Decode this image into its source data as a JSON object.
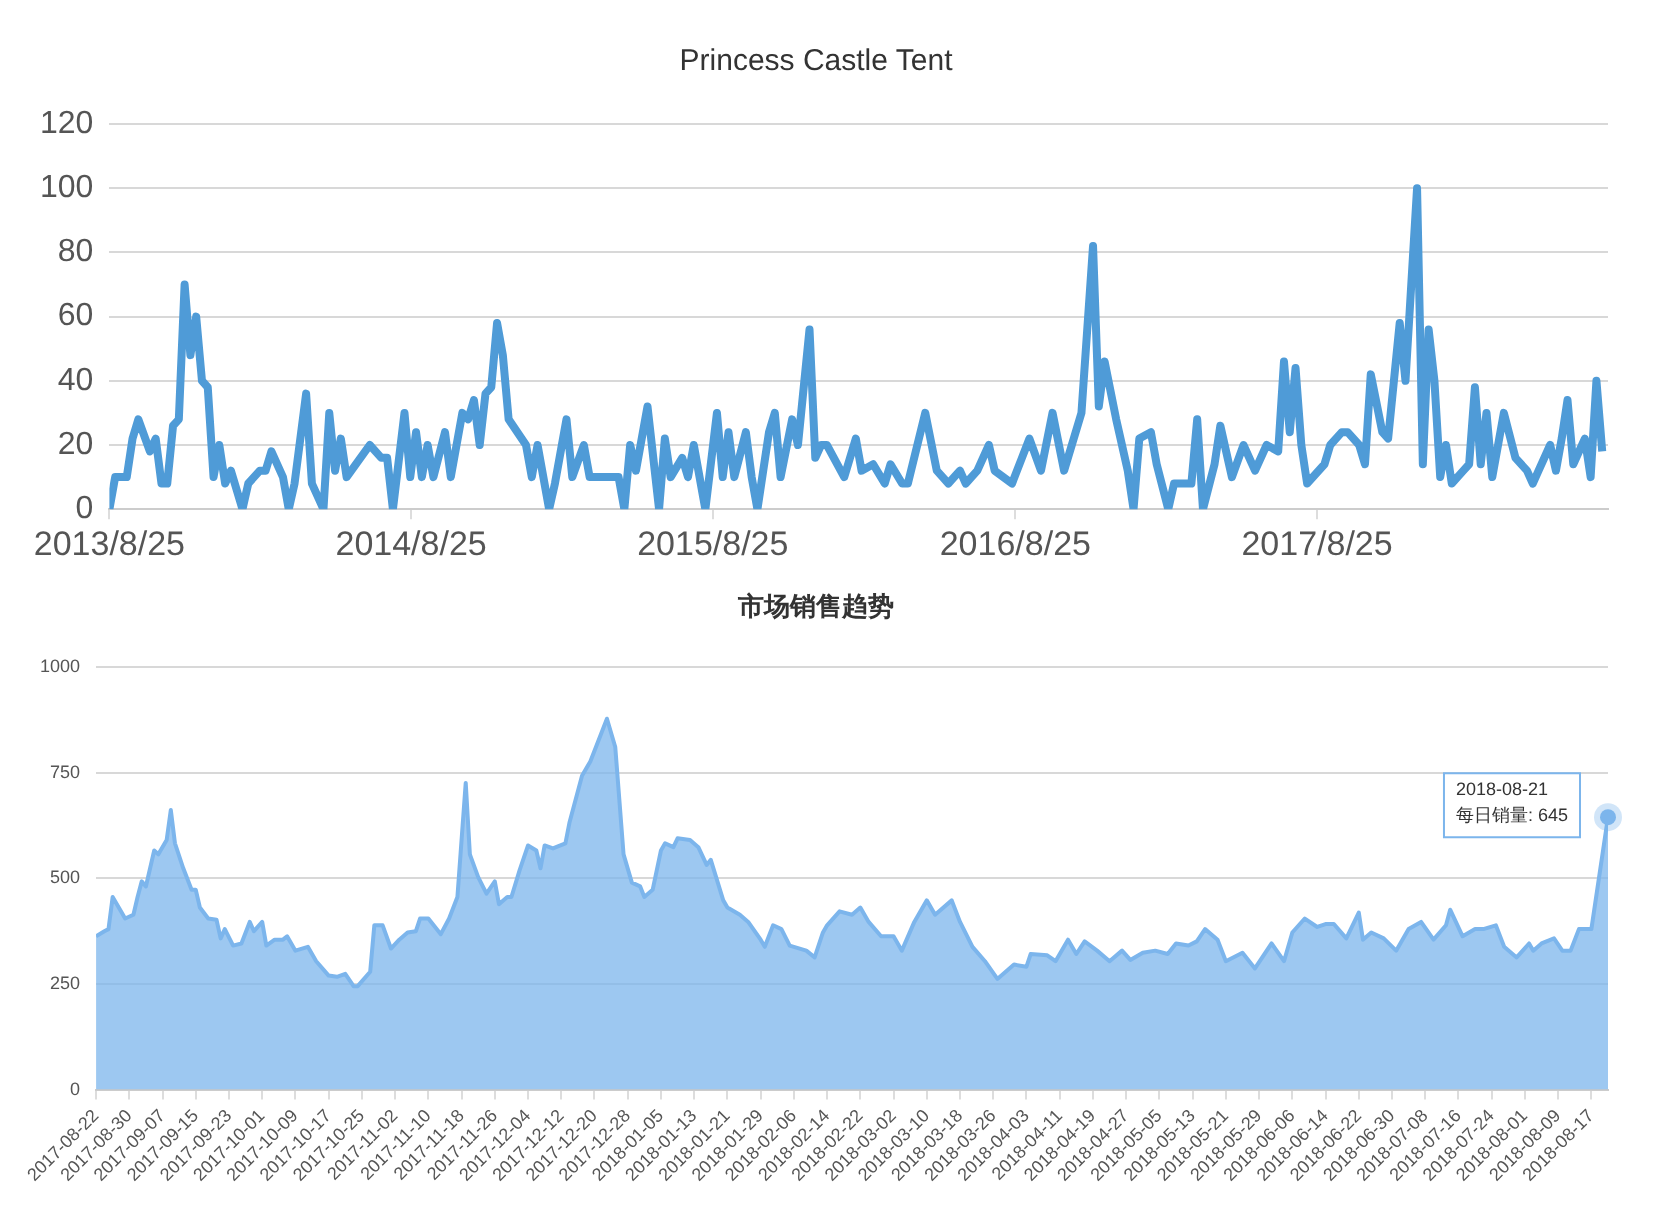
{
  "chart_data": [
    {
      "type": "line",
      "title": "Princess Castle Tent",
      "color": "#4f9bd7",
      "grid": "y",
      "legend": false,
      "xlim": [
        "2013-08-25",
        "2018-08-12"
      ],
      "ylim": [
        0,
        120
      ],
      "yticks": [
        0,
        20,
        40,
        60,
        80,
        100,
        120
      ],
      "xticks": [
        {
          "value": "2013-08-25",
          "label": "2013/8/25"
        },
        {
          "value": "2014-08-25",
          "label": "2014/8/25"
        },
        {
          "value": "2015-08-25",
          "label": "2015/8/25"
        },
        {
          "value": "2016-08-25",
          "label": "2016/8/25"
        },
        {
          "value": "2017-08-25",
          "label": "2017/8/25"
        }
      ],
      "x": [
        "2013-08-25",
        "2013-09-01",
        "2013-09-15",
        "2013-09-22",
        "2013-09-29",
        "2013-10-13",
        "2013-10-20",
        "2013-10-27",
        "2013-11-03",
        "2013-11-10",
        "2013-11-17",
        "2013-11-24",
        "2013-12-01",
        "2013-12-08",
        "2013-12-15",
        "2013-12-22",
        "2013-12-29",
        "2014-01-05",
        "2014-01-12",
        "2014-01-19",
        "2014-02-02",
        "2014-02-09",
        "2014-02-23",
        "2014-03-02",
        "2014-03-09",
        "2014-03-23",
        "2014-03-30",
        "2014-04-06",
        "2014-04-20",
        "2014-04-27",
        "2014-05-11",
        "2014-05-18",
        "2014-05-25",
        "2014-06-01",
        "2014-06-08",
        "2014-07-06",
        "2014-07-20",
        "2014-07-27",
        "2014-08-03",
        "2014-08-17",
        "2014-08-24",
        "2014-08-31",
        "2014-09-07",
        "2014-09-14",
        "2014-09-21",
        "2014-10-05",
        "2014-10-12",
        "2014-10-26",
        "2014-11-02",
        "2014-11-09",
        "2014-11-16",
        "2014-11-23",
        "2014-11-30",
        "2014-12-07",
        "2014-12-14",
        "2014-12-21",
        "2015-01-11",
        "2015-01-18",
        "2015-01-25",
        "2015-02-08",
        "2015-02-15",
        "2015-03-01",
        "2015-03-08",
        "2015-03-22",
        "2015-03-29",
        "2015-05-03",
        "2015-05-10",
        "2015-05-17",
        "2015-05-24",
        "2015-06-07",
        "2015-06-21",
        "2015-06-28",
        "2015-07-05",
        "2015-07-19",
        "2015-07-26",
        "2015-08-02",
        "2015-08-16",
        "2015-08-30",
        "2015-09-06",
        "2015-09-13",
        "2015-09-20",
        "2015-10-04",
        "2015-10-11",
        "2015-10-18",
        "2015-11-01",
        "2015-11-08",
        "2015-11-15",
        "2015-11-29",
        "2015-12-06",
        "2015-12-20",
        "2015-12-27",
        "2016-01-03",
        "2016-01-10",
        "2016-01-31",
        "2016-02-14",
        "2016-02-21",
        "2016-03-06",
        "2016-03-20",
        "2016-03-27",
        "2016-04-10",
        "2016-04-17",
        "2016-05-08",
        "2016-05-22",
        "2016-06-05",
        "2016-06-19",
        "2016-06-26",
        "2016-07-10",
        "2016-07-24",
        "2016-07-31",
        "2016-08-21",
        "2016-09-11",
        "2016-09-25",
        "2016-10-09",
        "2016-10-23",
        "2016-11-13",
        "2016-11-27",
        "2016-12-04",
        "2016-12-11",
        "2016-12-25",
        "2017-01-08",
        "2017-01-15",
        "2017-01-22",
        "2017-02-05",
        "2017-02-12",
        "2017-02-26",
        "2017-03-05",
        "2017-03-26",
        "2017-04-02",
        "2017-04-09",
        "2017-04-23",
        "2017-04-30",
        "2017-05-14",
        "2017-05-28",
        "2017-06-11",
        "2017-06-25",
        "2017-07-09",
        "2017-07-16",
        "2017-07-23",
        "2017-07-30",
        "2017-08-06",
        "2017-08-13",
        "2017-09-03",
        "2017-09-10",
        "2017-09-24",
        "2017-10-01",
        "2017-10-15",
        "2017-10-22",
        "2017-10-29",
        "2017-11-12",
        "2017-11-19",
        "2017-12-03",
        "2017-12-10",
        "2017-12-24",
        "2017-12-31",
        "2018-01-07",
        "2018-01-14",
        "2018-01-21",
        "2018-01-28",
        "2018-02-04",
        "2018-02-18",
        "2018-02-25",
        "2018-03-04",
        "2018-03-11",
        "2018-03-18",
        "2018-03-25",
        "2018-04-08",
        "2018-04-22",
        "2018-05-06",
        "2018-05-13",
        "2018-05-20",
        "2018-06-03",
        "2018-06-10",
        "2018-06-17",
        "2018-06-24",
        "2018-07-01",
        "2018-07-15",
        "2018-07-22",
        "2018-07-29",
        "2018-08-05"
      ],
      "values": [
        0,
        10,
        10,
        22,
        28,
        18,
        22,
        8,
        8,
        26,
        28,
        70,
        48,
        60,
        40,
        38,
        10,
        20,
        8,
        12,
        0,
        8,
        12,
        12,
        18,
        10,
        0,
        8,
        36,
        8,
        0,
        30,
        12,
        22,
        10,
        20,
        16,
        16,
        0,
        30,
        10,
        24,
        10,
        20,
        10,
        24,
        10,
        30,
        28,
        34,
        20,
        36,
        38,
        58,
        48,
        28,
        20,
        10,
        20,
        0,
        8,
        28,
        10,
        20,
        10,
        10,
        0,
        20,
        12,
        32,
        0,
        22,
        10,
        16,
        10,
        20,
        0,
        30,
        10,
        24,
        10,
        24,
        10,
        0,
        24,
        30,
        10,
        28,
        20,
        56,
        16,
        20,
        20,
        10,
        22,
        12,
        14,
        8,
        14,
        8,
        8,
        30,
        12,
        8,
        12,
        8,
        12,
        20,
        12,
        8,
        22,
        12,
        30,
        12,
        30,
        82,
        32,
        46,
        28,
        12,
        0,
        22,
        24,
        14,
        0,
        8,
        8,
        28,
        0,
        14,
        26,
        10,
        20,
        12,
        20,
        18,
        46,
        24,
        44,
        20,
        8,
        14,
        20,
        24,
        24,
        20,
        14,
        42,
        24,
        22,
        58,
        40,
        100,
        14,
        56,
        40,
        10,
        20,
        8,
        12,
        14,
        38,
        14,
        30,
        10,
        30,
        16,
        12,
        8,
        12,
        20,
        12,
        22,
        34,
        14,
        22,
        10,
        40,
        18
      ]
    },
    {
      "type": "area",
      "title": "市场销售趋势",
      "color": "#7cb5ec",
      "grid": "y",
      "legend": false,
      "xlim": [
        "2017-08-22",
        "2018-08-21"
      ],
      "ylim": [
        0,
        1000
      ],
      "yticks": [
        0,
        250,
        500,
        750,
        1000
      ],
      "xticks": [
        "2017-08-22",
        "2017-08-30",
        "2017-09-07",
        "2017-09-15",
        "2017-09-23",
        "2017-10-01",
        "2017-10-09",
        "2017-10-17",
        "2017-10-25",
        "2017-11-02",
        "2017-11-10",
        "2017-11-18",
        "2017-11-26",
        "2017-12-04",
        "2017-12-12",
        "2017-12-20",
        "2017-12-28",
        "2018-01-05",
        "2018-01-13",
        "2018-01-21",
        "2018-01-29",
        "2018-02-06",
        "2018-02-14",
        "2018-02-22",
        "2018-03-02",
        "2018-03-10",
        "2018-03-18",
        "2018-03-26",
        "2018-04-03",
        "2018-04-11",
        "2018-04-19",
        "2018-04-27",
        "2018-05-05",
        "2018-05-13",
        "2018-05-21",
        "2018-05-29",
        "2018-06-06",
        "2018-06-14",
        "2018-06-22",
        "2018-06-30",
        "2018-07-08",
        "2018-07-16",
        "2018-07-24",
        "2018-08-01",
        "2018-08-09",
        "2018-08-17"
      ],
      "annotations": [
        {
          "text": "2018-08-21\n每日销量: 645",
          "x": "2018-08-21",
          "y": 645
        }
      ],
      "x": [
        "2017-08-22",
        "2017-08-24",
        "2017-08-25",
        "2017-08-26",
        "2017-08-28",
        "2017-08-29",
        "2017-08-31",
        "2017-09-01",
        "2017-09-02",
        "2017-09-03",
        "2017-09-05",
        "2017-09-06",
        "2017-09-08",
        "2017-09-09",
        "2017-09-10",
        "2017-09-12",
        "2017-09-14",
        "2017-09-15",
        "2017-09-16",
        "2017-09-18",
        "2017-09-20",
        "2017-09-21",
        "2017-09-22",
        "2017-09-24",
        "2017-09-26",
        "2017-09-28",
        "2017-09-29",
        "2017-10-01",
        "2017-10-02",
        "2017-10-04",
        "2017-10-06",
        "2017-10-07",
        "2017-10-09",
        "2017-10-12",
        "2017-10-14",
        "2017-10-17",
        "2017-10-19",
        "2017-10-21",
        "2017-10-23",
        "2017-10-24",
        "2017-10-27",
        "2017-10-28",
        "2017-10-30",
        "2017-11-01",
        "2017-11-03",
        "2017-11-05",
        "2017-11-07",
        "2017-11-08",
        "2017-11-10",
        "2017-11-13",
        "2017-11-15",
        "2017-11-17",
        "2017-11-19",
        "2017-11-20",
        "2017-11-22",
        "2017-11-24",
        "2017-11-26",
        "2017-11-27",
        "2017-11-29",
        "2017-11-30",
        "2017-12-02",
        "2017-12-04",
        "2017-12-06",
        "2017-12-07",
        "2017-12-08",
        "2017-12-10",
        "2017-12-13",
        "2017-12-14",
        "2017-12-17",
        "2017-12-19",
        "2017-12-23",
        "2017-12-25",
        "2017-12-27",
        "2017-12-29",
        "2017-12-31",
        "2018-01-01",
        "2018-01-03",
        "2018-01-05",
        "2018-01-06",
        "2018-01-08",
        "2018-01-09",
        "2018-01-12",
        "2018-01-14",
        "2018-01-16",
        "2018-01-17",
        "2018-01-20",
        "2018-01-21",
        "2018-01-24",
        "2018-01-26",
        "2018-01-29",
        "2018-01-30",
        "2018-02-01",
        "2018-02-03",
        "2018-02-05",
        "2018-02-09",
        "2018-02-11",
        "2018-02-13",
        "2018-02-14",
        "2018-02-17",
        "2018-02-20",
        "2018-02-22",
        "2018-02-24",
        "2018-02-27",
        "2018-03-02",
        "2018-03-04",
        "2018-03-07",
        "2018-03-10",
        "2018-03-12",
        "2018-03-16",
        "2018-03-18",
        "2018-03-21",
        "2018-03-24",
        "2018-03-27",
        "2018-03-31",
        "2018-04-03",
        "2018-04-04",
        "2018-04-08",
        "2018-04-10",
        "2018-04-13",
        "2018-04-15",
        "2018-04-17",
        "2018-04-20",
        "2018-04-23",
        "2018-04-26",
        "2018-04-28",
        "2018-05-01",
        "2018-05-04",
        "2018-05-07",
        "2018-05-09",
        "2018-05-12",
        "2018-05-14",
        "2018-05-16",
        "2018-05-19",
        "2018-05-21",
        "2018-05-25",
        "2018-05-28",
        "2018-06-01",
        "2018-06-04",
        "2018-06-06",
        "2018-06-09",
        "2018-06-12",
        "2018-06-14",
        "2018-06-16",
        "2018-06-19",
        "2018-06-22",
        "2018-06-23",
        "2018-06-25",
        "2018-06-28",
        "2018-07-01",
        "2018-07-04",
        "2018-07-07",
        "2018-07-10",
        "2018-07-13",
        "2018-07-14",
        "2018-07-17",
        "2018-07-20",
        "2018-07-22",
        "2018-07-25",
        "2018-07-27",
        "2018-07-30",
        "2018-08-02",
        "2018-08-03",
        "2018-08-05",
        "2018-08-08",
        "2018-08-10",
        "2018-08-12",
        "2018-08-14",
        "2018-08-17",
        "2018-08-21"
      ],
      "values": [
        363,
        375,
        380,
        456,
        422,
        405,
        414,
        456,
        493,
        481,
        566,
        557,
        591,
        662,
        583,
        524,
        473,
        473,
        431,
        405,
        402,
        358,
        380,
        341,
        346,
        397,
        375,
        397,
        341,
        355,
        355,
        363,
        329,
        338,
        304,
        270,
        267,
        274,
        245,
        245,
        279,
        389,
        389,
        334,
        355,
        372,
        375,
        405,
        405,
        368,
        405,
        456,
        726,
        557,
        503,
        464,
        493,
        439,
        456,
        456,
        520,
        578,
        566,
        524,
        578,
        571,
        583,
        633,
        743,
        777,
        878,
        811,
        557,
        490,
        481,
        456,
        473,
        566,
        583,
        574,
        595,
        591,
        574,
        532,
        544,
        448,
        431,
        414,
        397,
        355,
        338,
        389,
        380,
        341,
        329,
        313,
        372,
        389,
        422,
        414,
        431,
        397,
        363,
        363,
        329,
        397,
        448,
        414,
        448,
        397,
        338,
        304,
        262,
        296,
        291,
        321,
        318,
        304,
        355,
        321,
        351,
        329,
        304,
        329,
        307,
        324,
        329,
        321,
        346,
        341,
        351,
        380,
        355,
        304,
        324,
        287,
        346,
        304,
        372,
        405,
        385,
        392,
        392,
        358,
        419,
        355,
        372,
        358,
        329,
        380,
        397,
        355,
        389,
        426,
        363,
        380,
        380,
        389,
        338,
        313,
        346,
        329,
        346,
        358,
        329,
        329,
        380,
        380,
        645
      ]
    }
  ]
}
